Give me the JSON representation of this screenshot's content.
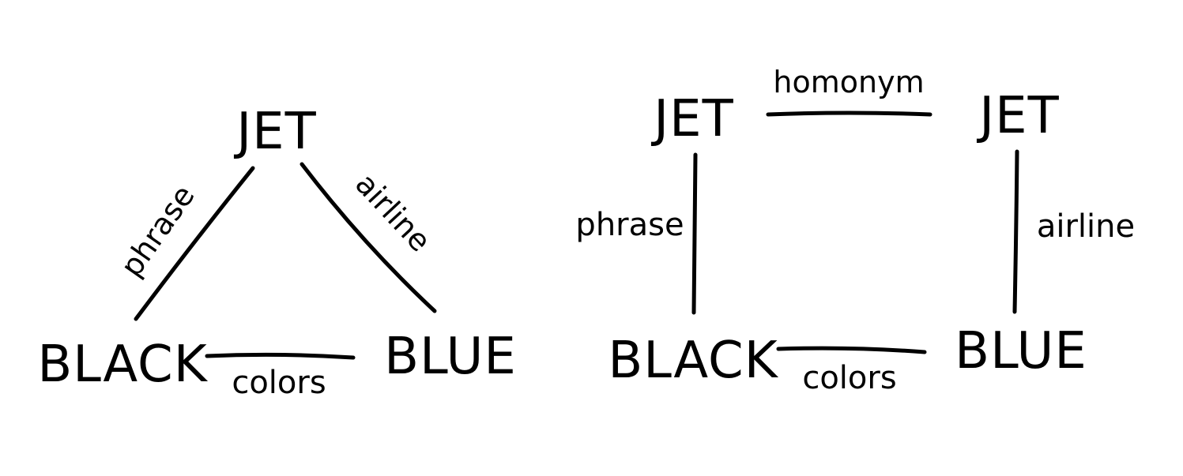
{
  "diagrams": [
    {
      "nodes": {
        "top": "JET",
        "bottom_left": "BLACK",
        "bottom_right": "BLUE"
      },
      "edges": {
        "left": "phrase",
        "right": "airline",
        "bottom": "colors"
      }
    },
    {
      "nodes": {
        "top_left": "JET",
        "top_right": "JET",
        "bottom_left": "BLACK",
        "bottom_right": "BLUE"
      },
      "edges": {
        "top": "homonym",
        "left": "phrase",
        "right": "airline",
        "bottom": "colors"
      }
    }
  ],
  "colors": {
    "ink": "#000000",
    "background": "#ffffff"
  }
}
